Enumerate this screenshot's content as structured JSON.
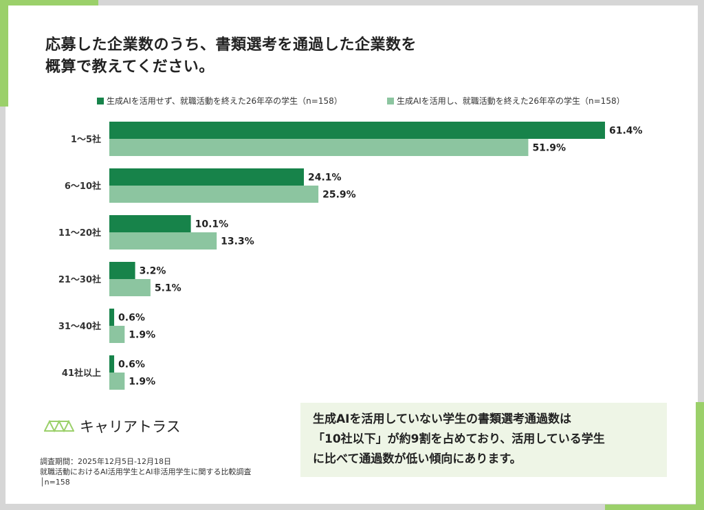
{
  "title_lines": [
    "応募した企業数のうち、書類選考を通過した企業数を",
    "概算で教えてください。"
  ],
  "colors": {
    "series1": "#17834a",
    "series2": "#8cc5a0",
    "accent": "#9bd06a",
    "note_bg": "#eef5e6"
  },
  "chart_data": {
    "type": "bar",
    "orientation": "horizontal",
    "categories": [
      "1～5社",
      "6～10社",
      "11～20社",
      "21～30社",
      "31～40社",
      "41社以上"
    ],
    "series": [
      {
        "name": "生成AIを活用せず、就職活動を終えた26年卒の学生（n=158）",
        "values": [
          61.4,
          24.1,
          10.1,
          3.2,
          0.6,
          0.6
        ],
        "labels": [
          "61.4%",
          "24.1%",
          "10.1%",
          "3.2%",
          "0.6%",
          "0.6%"
        ]
      },
      {
        "name": "生成AIを活用し、就職活動を終えた26年卒の学生（n=158）",
        "values": [
          51.9,
          25.9,
          13.3,
          5.1,
          1.9,
          1.9
        ],
        "labels": [
          "51.9%",
          "25.9%",
          "13.3%",
          "5.1%",
          "1.9%",
          "1.9%"
        ]
      }
    ],
    "unit": "%",
    "legend": "top",
    "grid": false
  },
  "logo": {
    "text": "キャリアトラス",
    "icon": "truss-icon"
  },
  "notes": [
    "調査期間：2025年12月5日-12月18日",
    "就職活動におけるAI活用学生とAI非活用学生に関する比較調査",
    "│n=158"
  ],
  "summary_lines": [
    "生成AIを活用していない学生の書類選考通過数は",
    "「10社以下」が約9割を占めており、活用している学生",
    "に比べて通過数が低い傾向にあります。"
  ]
}
